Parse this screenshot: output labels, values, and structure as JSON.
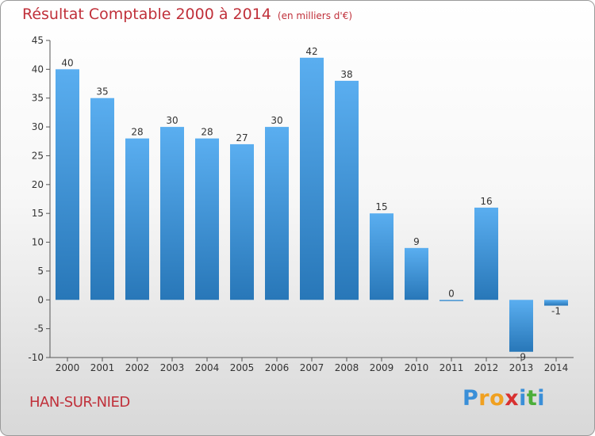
{
  "chart_data": {
    "type": "bar",
    "title": "Résultat Comptable 2000 à 2014",
    "unit": "(en milliers d'€)",
    "categories": [
      "2000",
      "2001",
      "2002",
      "2003",
      "2004",
      "2005",
      "2006",
      "2007",
      "2008",
      "2009",
      "2010",
      "2011",
      "2012",
      "2013",
      "2014"
    ],
    "values": [
      40,
      35,
      28,
      30,
      28,
      27,
      30,
      42,
      38,
      15,
      9,
      0,
      16,
      -9,
      -1
    ],
    "data_labels": [
      "40",
      "35",
      "28",
      "30",
      "28",
      "27",
      "30",
      "42",
      "38",
      "15",
      "9",
      "0",
      "16",
      "-9",
      "-1"
    ],
    "ylim": [
      -10,
      45
    ],
    "yticks": [
      "-10",
      "-5",
      "0",
      "5",
      "10",
      "15",
      "20",
      "25",
      "30",
      "35",
      "40",
      "45"
    ],
    "xlabel": "",
    "ylabel": "",
    "grid": false
  },
  "footer": {
    "commune": "HAN-SUR-NIED",
    "logo_letters": [
      "P",
      "r",
      "o",
      "x",
      "i",
      "t",
      "i"
    ]
  },
  "colors": {
    "title": "#c0303a",
    "bar_light": "#5aaef0",
    "bar_dark": "#2877b8",
    "logo": [
      "#3a8fd8",
      "#f0a020",
      "#f0a020",
      "#d83030",
      "#3a8fd8",
      "#4cae3a",
      "#3a8fd8"
    ]
  }
}
